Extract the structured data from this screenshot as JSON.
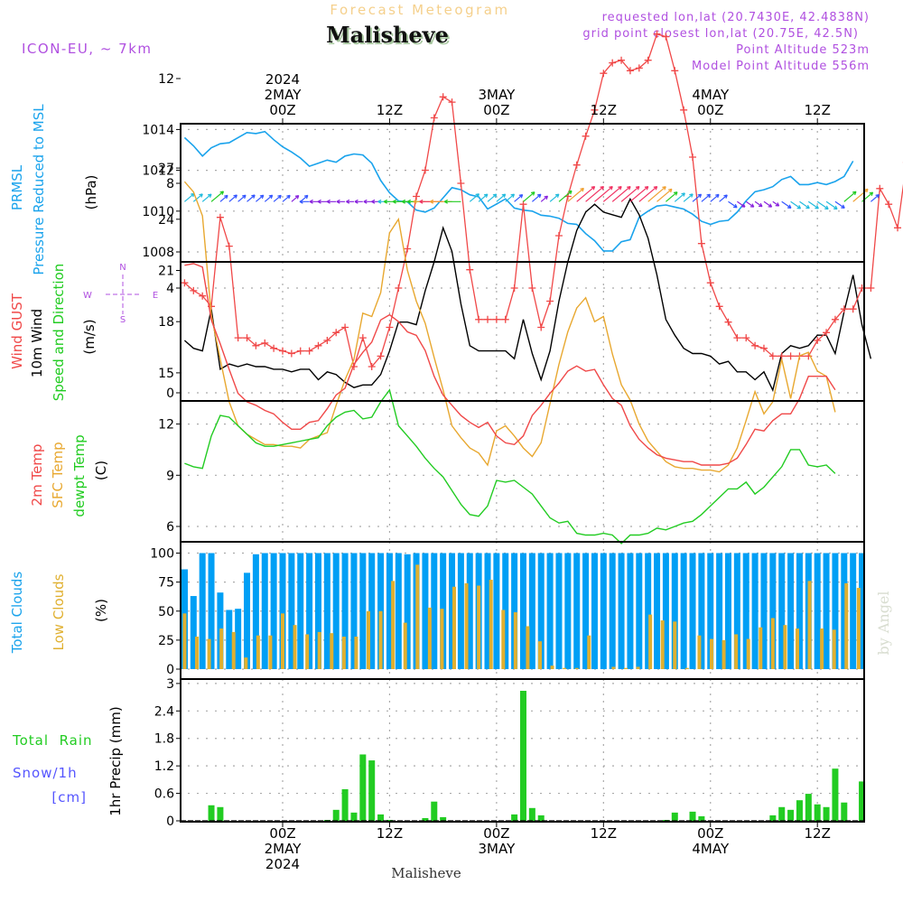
{
  "header": {
    "subtitle": "Forecast Meteogram",
    "location": "Malisheve",
    "model": "ICON-EU, ~ 7km",
    "requested": "requested lon,lat (20.7430E, 42.4838N)",
    "grid_point": "grid point closest lon,lat (20.75E, 42.5N)",
    "point_altitude": "Point Altitude 523m",
    "model_altitude": "Model Point Altitude 556m"
  },
  "footer": {
    "location": "Malisheve",
    "watermark": "by Angel"
  },
  "colors": {
    "pressure": "#1aa3ec",
    "gust": "#f04848",
    "wind": "#000000",
    "temp2m": "#f04848",
    "sfc": "#e8a830",
    "dewpt": "#22cc22",
    "total_clouds": "#009ff5",
    "low_clouds": "#e0b030",
    "rain": "#22cc22",
    "snow": "#5555ff",
    "label_purple": "#b050e0"
  },
  "time_axis": {
    "top_ticks": [
      {
        "hour": 0,
        "lines": [
          "2024",
          "2MAY",
          "00Z"
        ]
      },
      {
        "hour": 12,
        "lines": [
          "12Z"
        ]
      },
      {
        "hour": 24,
        "lines": [
          "3MAY",
          "00Z"
        ]
      },
      {
        "hour": 36,
        "lines": [
          "12Z"
        ]
      },
      {
        "hour": 48,
        "lines": [
          "4MAY",
          "00Z"
        ]
      },
      {
        "hour": 60,
        "lines": [
          "12Z"
        ]
      }
    ],
    "bottom_ticks": [
      {
        "hour": 0,
        "lines": [
          "00Z",
          "2MAY",
          "2024"
        ]
      },
      {
        "hour": 12,
        "lines": [
          "12Z"
        ]
      },
      {
        "hour": 24,
        "lines": [
          "00Z",
          "3MAY"
        ]
      },
      {
        "hour": 36,
        "lines": [
          "12Z"
        ]
      },
      {
        "hour": 48,
        "lines": [
          "00Z",
          "4MAY"
        ]
      },
      {
        "hour": 60,
        "lines": [
          "12Z"
        ]
      }
    ],
    "range_hours": [
      -11.5,
      65.2
    ]
  },
  "compass": {
    "n": "N",
    "s": "S",
    "e": "E",
    "w": "W"
  },
  "chart_data": [
    {
      "type": "line",
      "title": "PRMSL Pressure Reduced to MSL",
      "labels": [
        "PRMSL",
        "Pressure Reduced to MSL",
        "(hPa)"
      ],
      "ylabel": "(hPa)",
      "ylim": [
        1007.5,
        1014.3
      ],
      "yticks": [
        1008,
        1010,
        1012,
        1014
      ],
      "grid": true,
      "x_start_hour": -11,
      "series": [
        {
          "name": "PRMSL",
          "values": [
            1013.6,
            1013.2,
            1012.7,
            1013.1,
            1013.3,
            1013.35,
            1013.6,
            1013.85,
            1013.8,
            1013.9,
            1013.5,
            1013.15,
            1012.9,
            1012.6,
            1012.2,
            1012.35,
            1012.5,
            1012.4,
            1012.7,
            1012.8,
            1012.75,
            1012.35,
            1011.5,
            1010.9,
            1010.5,
            1010.45,
            1010.05,
            1009.95,
            1010.15,
            1010.65,
            1011.15,
            1011.05,
            1010.8,
            1010.7,
            1010.1,
            1010.35,
            1010.6,
            1010.15,
            1010.05,
            1010.0,
            1009.8,
            1009.75,
            1009.65,
            1009.4,
            1009.35,
            1008.9,
            1008.55,
            1008.05,
            1008.05,
            1008.5,
            1008.6,
            1009.7,
            1010.0,
            1010.25,
            1010.3,
            1010.2,
            1010.1,
            1009.85,
            1009.5,
            1009.35,
            1009.5,
            1009.55,
            1009.95,
            1010.5,
            1010.95,
            1011.05,
            1011.2,
            1011.55,
            1011.7,
            1011.3,
            1011.3,
            1011.4,
            1011.3,
            1011.45,
            1011.7,
            1012.45
          ]
        }
      ]
    },
    {
      "type": "line",
      "title": "Wind GUST / 10m Wind Speed and Direction",
      "labels": [
        "Wind GUST",
        "10m Wind",
        "Speed and Direction",
        "(m/s)"
      ],
      "ylabel": "(m/s)",
      "ylim": [
        -0.3,
        14.8
      ],
      "yticks": [
        0,
        4,
        8,
        12
      ],
      "grid": true,
      "x_start_hour": -11,
      "series": [
        {
          "name": "Wind GUST",
          "values": [
            4.2,
            3.9,
            3.7,
            3.3,
            6.7,
            5.6,
            2.1,
            2.1,
            1.8,
            1.9,
            1.7,
            1.6,
            1.5,
            1.6,
            1.6,
            1.8,
            2.0,
            2.3,
            2.5,
            1.0,
            2.1,
            1.0,
            1.4,
            2.5,
            4.0,
            5.5,
            7.5,
            8.5,
            10.5,
            11.3,
            11.1,
            8.0,
            4.7,
            2.8,
            2.8,
            2.8,
            2.8,
            4.0,
            7.2,
            4.0,
            2.5,
            3.5,
            6.0,
            7.5,
            8.7,
            9.8,
            10.8,
            12.2,
            12.6,
            12.7,
            12.3,
            12.4,
            12.7,
            13.7,
            13.6,
            12.3,
            10.8,
            9.0,
            5.7,
            4.2,
            3.3,
            2.7,
            2.1,
            2.1,
            1.8,
            1.7,
            1.4,
            1.4,
            1.4,
            1.4,
            1.4,
            2.0,
            2.3,
            2.8,
            3.2,
            3.2,
            4.0,
            4.0,
            7.8,
            7.2,
            6.3,
            8.8,
            8.8,
            4.5
          ]
        },
        {
          "name": "10m Wind",
          "values": [
            2.0,
            1.7,
            1.6,
            3.2,
            0.9,
            1.1,
            1.0,
            1.1,
            1.0,
            1.0,
            0.9,
            0.9,
            0.8,
            0.9,
            0.9,
            0.5,
            0.8,
            0.7,
            0.4,
            0.2,
            0.3,
            0.3,
            0.7,
            1.6,
            2.7,
            2.7,
            2.6,
            3.9,
            5.0,
            6.3,
            5.4,
            3.4,
            1.8,
            1.6,
            1.6,
            1.6,
            1.6,
            1.3,
            2.8,
            1.5,
            0.5,
            1.6,
            3.5,
            5.0,
            6.2,
            6.9,
            7.2,
            6.9,
            6.8,
            6.7,
            7.4,
            6.8,
            5.9,
            4.5,
            2.8,
            2.2,
            1.7,
            1.5,
            1.5,
            1.4,
            1.1,
            1.2,
            0.8,
            0.8,
            0.5,
            0.8,
            0.1,
            1.5,
            1.8,
            1.7,
            1.8,
            2.2,
            2.2,
            1.5,
            3.1,
            4.5,
            2.6,
            1.3
          ]
        }
      ]
    },
    {
      "type": "line",
      "title": "Temperatures",
      "labels": [
        "2m Temp",
        "SFC Temp",
        "dewpt Temp",
        "(C)"
      ],
      "ylabel": "(C)",
      "ylim": [
        3.5,
        27.5
      ],
      "yticks": [
        6,
        9,
        12,
        15,
        18,
        21,
        24,
        27
      ],
      "grid": true,
      "x_start_hour": -11,
      "series": [
        {
          "name": "2m Temp",
          "values": [
            21.3,
            21.4,
            21.2,
            18.1,
            16.7,
            15.2,
            13.8,
            13.3,
            13.1,
            12.8,
            12.6,
            12.1,
            11.7,
            11.7,
            12.1,
            12.2,
            12.9,
            13.7,
            14.1,
            15.5,
            16.2,
            16.8,
            18.1,
            18.4,
            18.0,
            17.4,
            17.2,
            16.3,
            14.8,
            13.7,
            13.1,
            12.5,
            12.1,
            11.8,
            12.1,
            11.3,
            10.9,
            10.8,
            11.3,
            12.5,
            13.1,
            13.8,
            14.4,
            15.1,
            15.4,
            15.1,
            15.2,
            14.3,
            13.5,
            13.1,
            11.9,
            11.1,
            10.6,
            10.2,
            10.0,
            9.9,
            9.8,
            9.8,
            9.6,
            9.6,
            9.6,
            9.7,
            10.0,
            10.8,
            11.7,
            11.6,
            12.2,
            12.6,
            12.6,
            13.5,
            14.8,
            14.8,
            14.8,
            14.0
          ]
        },
        {
          "name": "SFC Temp",
          "values": [
            26.2,
            25.6,
            24.2,
            18.4,
            15.8,
            13.3,
            11.9,
            11.4,
            11.1,
            10.8,
            10.8,
            10.7,
            10.7,
            10.6,
            11.1,
            11.3,
            11.5,
            13.1,
            14.6,
            15.8,
            18.5,
            18.3,
            19.7,
            23.2,
            24.0,
            21.0,
            19.2,
            17.9,
            15.9,
            14.0,
            11.9,
            11.2,
            10.6,
            10.3,
            9.6,
            11.6,
            11.9,
            11.3,
            10.6,
            10.1,
            10.9,
            13.2,
            15.5,
            17.4,
            18.8,
            19.4,
            18.0,
            18.3,
            16.1,
            14.3,
            13.4,
            12.0,
            11.0,
            10.4,
            9.8,
            9.5,
            9.4,
            9.4,
            9.3,
            9.3,
            9.2,
            9.6,
            10.6,
            12.2,
            13.9,
            12.6,
            13.3,
            15.8,
            13.5,
            16.0,
            16.2,
            15.1,
            14.8,
            12.7
          ]
        },
        {
          "name": "dewpt Temp",
          "values": [
            9.7,
            9.5,
            9.4,
            11.3,
            12.5,
            12.4,
            11.9,
            11.4,
            10.9,
            10.7,
            10.7,
            10.8,
            10.9,
            11.0,
            11.1,
            11.2,
            11.9,
            12.4,
            12.7,
            12.8,
            12.3,
            12.4,
            13.3,
            14.0,
            11.9,
            11.3,
            10.7,
            10.0,
            9.4,
            8.9,
            8.1,
            7.3,
            6.7,
            6.6,
            7.2,
            8.7,
            8.6,
            8.7,
            8.3,
            7.9,
            7.2,
            6.5,
            6.2,
            6.3,
            5.6,
            5.5,
            5.5,
            5.6,
            5.5,
            5.0,
            5.5,
            5.5,
            5.6,
            5.9,
            5.8,
            6.0,
            6.2,
            6.3,
            6.7,
            7.2,
            7.7,
            8.2,
            8.2,
            8.6,
            7.9,
            8.3,
            8.9,
            9.5,
            10.5,
            10.5,
            9.6,
            9.5,
            9.6,
            9.1
          ]
        }
      ]
    },
    {
      "type": "bar",
      "title": "Clouds",
      "labels": [
        "Total Clouds",
        "Low Clouds",
        "(%)"
      ],
      "ylabel": "(%)",
      "ylim": [
        0,
        104
      ],
      "yticks": [
        0,
        25,
        50,
        75,
        100
      ],
      "grid": true,
      "x_start_hour": -11,
      "series": [
        {
          "name": "Total Clouds",
          "values": [
            86,
            63,
            100,
            100,
            66,
            51,
            52,
            83,
            99,
            100,
            100,
            100,
            100,
            100,
            100,
            100,
            100,
            100,
            100,
            100,
            100,
            100,
            100,
            100,
            100,
            99,
            100,
            100,
            100,
            100,
            100,
            100,
            100,
            100,
            100,
            100,
            100,
            100,
            100,
            100,
            100,
            100,
            100,
            100,
            100,
            100,
            100,
            100,
            100,
            100,
            100,
            100,
            100,
            100,
            100,
            100,
            100,
            100,
            100,
            100,
            100,
            100,
            100,
            100,
            100,
            100,
            100,
            100,
            100,
            100,
            100,
            100,
            100,
            100,
            100,
            100,
            100,
            100,
            100,
            100,
            100,
            100,
            100,
            100,
            100,
            100,
            100,
            100,
            100,
            100,
            100,
            100,
            100,
            100,
            100,
            100,
            100,
            100,
            100,
            100,
            100,
            100,
            100,
            100,
            100,
            100,
            100,
            100,
            100,
            100,
            100,
            100
          ]
        },
        {
          "name": "Low Clouds",
          "values": [
            48,
            28,
            26,
            35,
            32,
            10,
            29,
            29,
            48,
            38,
            30,
            32,
            31,
            28,
            28,
            50,
            50,
            76,
            40,
            90,
            53,
            52,
            71,
            74,
            72,
            77,
            51,
            49,
            37,
            24,
            3,
            1,
            1,
            29,
            0,
            2,
            1,
            2,
            47,
            42,
            41,
            1,
            29,
            26,
            25,
            30,
            26,
            36,
            44,
            38,
            35,
            76,
            35,
            34,
            74,
            70
          ]
        }
      ]
    },
    {
      "type": "bar",
      "title": "1hr Precip (mm)",
      "labels": [
        "Total  Rain",
        "Snow/1h",
        "[cm]",
        "1hr Precip (mm)"
      ],
      "ylabel": "1hr Precip (mm)",
      "ylim": [
        0,
        3
      ],
      "yticks": [
        0,
        0.6,
        1.2,
        1.8,
        2.4,
        3
      ],
      "grid": true,
      "x_start_hour": -11,
      "series": [
        {
          "name": "Total Rain",
          "values": [
            0,
            0,
            0,
            0.34,
            0.3,
            0,
            0,
            0,
            0,
            0,
            0,
            0,
            0,
            0,
            0,
            0,
            0.02,
            0.24,
            0.69,
            0.18,
            1.45,
            1.32,
            0.14,
            0.02,
            0,
            0,
            0,
            0.06,
            0.42,
            0.08,
            0,
            0,
            0,
            0,
            0,
            0,
            0,
            0.14,
            2.84,
            0.28,
            0.12,
            0,
            0,
            0,
            0,
            0,
            0,
            0,
            0,
            0,
            0,
            0,
            0,
            0,
            0.02,
            0.18,
            0,
            0.2,
            0.1,
            0,
            0,
            0,
            0,
            0,
            0,
            0,
            0.12,
            0.3,
            0.24,
            0.45,
            0.59,
            0.36,
            0.3,
            1.14,
            0.4,
            0,
            0.86,
            0.5,
            0.12,
            0.12,
            0.18
          ]
        },
        {
          "name": "Snow/1h",
          "values": []
        }
      ]
    }
  ]
}
